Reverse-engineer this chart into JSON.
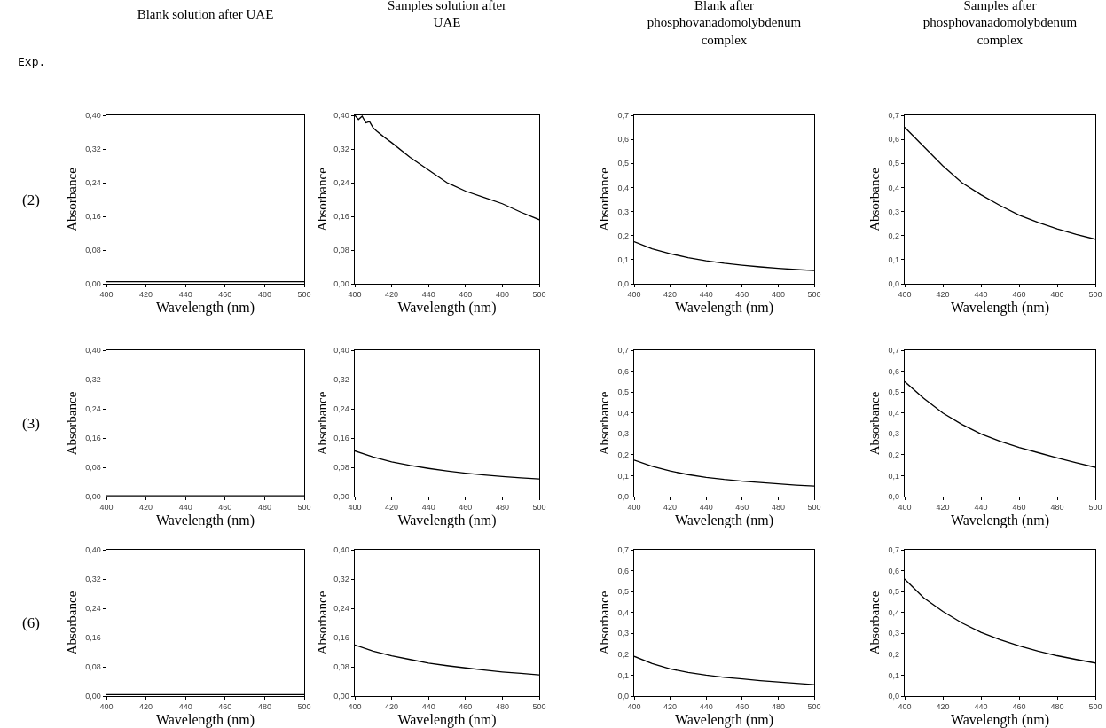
{
  "chart_data": [
    {
      "type": "line",
      "title": "Blank solution after UAE",
      "annotations": [
        "Exp.",
        "(2)"
      ],
      "xlabel": "Wavelength (nm)",
      "ylabel": "Absorbance",
      "color": "#000000",
      "marker": "none",
      "line_style": "solid",
      "x": [
        400,
        410,
        420,
        430,
        440,
        450,
        460,
        470,
        480,
        490,
        500
      ],
      "values": [
        0.005,
        0.005,
        0.005,
        0.005,
        0.005,
        0.005,
        0.005,
        0.005,
        0.005,
        0.005,
        0.005
      ],
      "xlim": [
        400,
        500
      ],
      "xticks": [
        400,
        420,
        440,
        460,
        480,
        500
      ],
      "ylim": [
        0,
        0.4
      ],
      "yticks": [
        {
          "value": 0,
          "label": "0,00"
        },
        {
          "value": 0.08,
          "label": "0,08"
        },
        {
          "value": 0.16,
          "label": "0,16"
        },
        {
          "value": 0.24,
          "label": "0,24"
        },
        {
          "value": 0.32,
          "label": "0,32"
        },
        {
          "value": 0.4,
          "label": "0,40"
        }
      ]
    },
    {
      "type": "line",
      "title": "Samples solution after UAE",
      "xlabel": "Wavelength (nm)",
      "ylabel": "Absorbance",
      "color": "#000000",
      "marker": "none",
      "line_style": "solid",
      "x": [
        400,
        402,
        404,
        406,
        408,
        410,
        412,
        414,
        416,
        420,
        430,
        440,
        450,
        460,
        470,
        480,
        490,
        500
      ],
      "values": [
        0.4,
        0.39,
        0.398,
        0.382,
        0.385,
        0.37,
        0.362,
        0.355,
        0.348,
        0.335,
        0.3,
        0.27,
        0.24,
        0.22,
        0.205,
        0.19,
        0.17,
        0.152
      ],
      "xlim": [
        400,
        500
      ],
      "xticks": [
        400,
        420,
        440,
        460,
        480,
        500
      ],
      "ylim": [
        0,
        0.4
      ],
      "yticks": [
        {
          "value": 0,
          "label": "0,00"
        },
        {
          "value": 0.08,
          "label": "0,08"
        },
        {
          "value": 0.16,
          "label": "0,16"
        },
        {
          "value": 0.24,
          "label": "0,24"
        },
        {
          "value": 0.32,
          "label": "0,32"
        },
        {
          "value": 0.4,
          "label": "0,40"
        }
      ]
    },
    {
      "type": "line",
      "title": "Blank after phosphovanadomolybdenum complex",
      "xlabel": "Wavelength (nm)",
      "ylabel": "Absorbance",
      "color": "#000000",
      "marker": "none",
      "line_style": "solid",
      "x": [
        400,
        410,
        420,
        430,
        440,
        450,
        460,
        470,
        480,
        490,
        500
      ],
      "values": [
        0.175,
        0.145,
        0.125,
        0.108,
        0.095,
        0.085,
        0.077,
        0.07,
        0.064,
        0.059,
        0.055
      ],
      "xlim": [
        400,
        500
      ],
      "xticks": [
        400,
        420,
        440,
        460,
        480,
        500
      ],
      "ylim": [
        0,
        0.7
      ],
      "yticks": [
        {
          "value": 0,
          "label": "0,0"
        },
        {
          "value": 0.1,
          "label": "0,1"
        },
        {
          "value": 0.2,
          "label": "0,2"
        },
        {
          "value": 0.3,
          "label": "0,3"
        },
        {
          "value": 0.4,
          "label": "0,4"
        },
        {
          "value": 0.5,
          "label": "0,5"
        },
        {
          "value": 0.6,
          "label": "0,6"
        },
        {
          "value": 0.7,
          "label": "0,7"
        }
      ]
    },
    {
      "type": "line",
      "title": "Samples after phosphovanadomolybdenum complex",
      "xlabel": "Wavelength (nm)",
      "ylabel": "Absorbance",
      "color": "#000000",
      "marker": "none",
      "line_style": "solid",
      "x": [
        400,
        410,
        420,
        430,
        440,
        450,
        460,
        470,
        480,
        490,
        500
      ],
      "values": [
        0.65,
        0.57,
        0.49,
        0.42,
        0.37,
        0.325,
        0.285,
        0.255,
        0.228,
        0.205,
        0.185
      ],
      "xlim": [
        400,
        500
      ],
      "xticks": [
        400,
        420,
        440,
        460,
        480,
        500
      ],
      "ylim": [
        0,
        0.7
      ],
      "yticks": [
        {
          "value": 0,
          "label": "0,0"
        },
        {
          "value": 0.1,
          "label": "0,1"
        },
        {
          "value": 0.2,
          "label": "0,2"
        },
        {
          "value": 0.3,
          "label": "0,3"
        },
        {
          "value": 0.4,
          "label": "0,4"
        },
        {
          "value": 0.5,
          "label": "0,5"
        },
        {
          "value": 0.6,
          "label": "0,6"
        },
        {
          "value": 0.7,
          "label": "0,7"
        }
      ]
    },
    {
      "type": "line",
      "annotations": [
        "(3)"
      ],
      "xlabel": "Wavelength (nm)",
      "ylabel": "Absorbance",
      "color": "#000000",
      "marker": "none",
      "line_style": "solid",
      "x": [
        400,
        410,
        420,
        430,
        440,
        450,
        460,
        470,
        480,
        490,
        500
      ],
      "values": [
        0.002,
        0.002,
        0.002,
        0.002,
        0.002,
        0.002,
        0.002,
        0.002,
        0.002,
        0.002,
        0.002
      ],
      "xlim": [
        400,
        500
      ],
      "xticks": [
        400,
        420,
        440,
        460,
        480,
        500
      ],
      "ylim": [
        0,
        0.4
      ],
      "yticks": [
        {
          "value": 0,
          "label": "0,00"
        },
        {
          "value": 0.08,
          "label": "0,08"
        },
        {
          "value": 0.16,
          "label": "0,16"
        },
        {
          "value": 0.24,
          "label": "0,24"
        },
        {
          "value": 0.32,
          "label": "0,32"
        },
        {
          "value": 0.4,
          "label": "0,40"
        }
      ]
    },
    {
      "type": "line",
      "xlabel": "Wavelength (nm)",
      "ylabel": "Absorbance",
      "color": "#000000",
      "marker": "none",
      "line_style": "solid",
      "x": [
        400,
        410,
        420,
        430,
        440,
        450,
        460,
        470,
        480,
        490,
        500
      ],
      "values": [
        0.125,
        0.108,
        0.095,
        0.085,
        0.077,
        0.07,
        0.064,
        0.059,
        0.055,
        0.051,
        0.048
      ],
      "xlim": [
        400,
        500
      ],
      "xticks": [
        400,
        420,
        440,
        460,
        480,
        500
      ],
      "ylim": [
        0,
        0.4
      ],
      "yticks": [
        {
          "value": 0,
          "label": "0,00"
        },
        {
          "value": 0.08,
          "label": "0,08"
        },
        {
          "value": 0.16,
          "label": "0,16"
        },
        {
          "value": 0.24,
          "label": "0,24"
        },
        {
          "value": 0.32,
          "label": "0,32"
        },
        {
          "value": 0.4,
          "label": "0,40"
        }
      ]
    },
    {
      "type": "line",
      "xlabel": "Wavelength (nm)",
      "ylabel": "Absorbance",
      "color": "#000000",
      "marker": "none",
      "line_style": "solid",
      "x": [
        400,
        410,
        420,
        430,
        440,
        450,
        460,
        470,
        480,
        490,
        500
      ],
      "values": [
        0.175,
        0.145,
        0.122,
        0.105,
        0.092,
        0.082,
        0.074,
        0.067,
        0.061,
        0.055,
        0.05
      ],
      "xlim": [
        400,
        500
      ],
      "xticks": [
        400,
        420,
        440,
        460,
        480,
        500
      ],
      "ylim": [
        0,
        0.7
      ],
      "yticks": [
        {
          "value": 0,
          "label": "0,0"
        },
        {
          "value": 0.1,
          "label": "0,1"
        },
        {
          "value": 0.2,
          "label": "0,2"
        },
        {
          "value": 0.3,
          "label": "0,3"
        },
        {
          "value": 0.4,
          "label": "0,4"
        },
        {
          "value": 0.5,
          "label": "0,5"
        },
        {
          "value": 0.6,
          "label": "0,6"
        },
        {
          "value": 0.7,
          "label": "0,7"
        }
      ]
    },
    {
      "type": "line",
      "xlabel": "Wavelength (nm)",
      "ylabel": "Absorbance",
      "color": "#000000",
      "marker": "none",
      "line_style": "solid",
      "x": [
        400,
        410,
        420,
        430,
        440,
        450,
        460,
        470,
        480,
        490,
        500
      ],
      "values": [
        0.55,
        0.47,
        0.4,
        0.345,
        0.3,
        0.265,
        0.235,
        0.21,
        0.185,
        0.162,
        0.14
      ],
      "xlim": [
        400,
        500
      ],
      "xticks": [
        400,
        420,
        440,
        460,
        480,
        500
      ],
      "ylim": [
        0,
        0.7
      ],
      "yticks": [
        {
          "value": 0,
          "label": "0,0"
        },
        {
          "value": 0.1,
          "label": "0,1"
        },
        {
          "value": 0.2,
          "label": "0,2"
        },
        {
          "value": 0.3,
          "label": "0,3"
        },
        {
          "value": 0.4,
          "label": "0,4"
        },
        {
          "value": 0.5,
          "label": "0,5"
        },
        {
          "value": 0.6,
          "label": "0,6"
        },
        {
          "value": 0.7,
          "label": "0,7"
        }
      ]
    },
    {
      "type": "line",
      "annotations": [
        "(6)"
      ],
      "xlabel": "Wavelength (nm)",
      "ylabel": "Absorbance",
      "color": "#000000",
      "marker": "none",
      "line_style": "solid",
      "x": [
        400,
        410,
        420,
        430,
        440,
        450,
        460,
        470,
        480,
        490,
        500
      ],
      "values": [
        0.004,
        0.004,
        0.004,
        0.004,
        0.004,
        0.004,
        0.004,
        0.004,
        0.004,
        0.004,
        0.004
      ],
      "xlim": [
        400,
        500
      ],
      "xticks": [
        400,
        420,
        440,
        460,
        480,
        500
      ],
      "ylim": [
        0,
        0.4
      ],
      "yticks": [
        {
          "value": 0,
          "label": "0,00"
        },
        {
          "value": 0.08,
          "label": "0,08"
        },
        {
          "value": 0.16,
          "label": "0,16"
        },
        {
          "value": 0.24,
          "label": "0,24"
        },
        {
          "value": 0.32,
          "label": "0,32"
        },
        {
          "value": 0.4,
          "label": "0,40"
        }
      ]
    },
    {
      "type": "line",
      "xlabel": "Wavelength (nm)",
      "ylabel": "Absorbance",
      "color": "#000000",
      "marker": "none",
      "line_style": "solid",
      "x": [
        400,
        410,
        420,
        430,
        440,
        450,
        460,
        470,
        480,
        490,
        500
      ],
      "values": [
        0.14,
        0.123,
        0.11,
        0.1,
        0.09,
        0.083,
        0.077,
        0.071,
        0.066,
        0.062,
        0.058
      ],
      "xlim": [
        400,
        500
      ],
      "xticks": [
        400,
        420,
        440,
        460,
        480,
        500
      ],
      "ylim": [
        0,
        0.4
      ],
      "yticks": [
        {
          "value": 0,
          "label": "0,00"
        },
        {
          "value": 0.08,
          "label": "0,08"
        },
        {
          "value": 0.16,
          "label": "0,16"
        },
        {
          "value": 0.24,
          "label": "0,24"
        },
        {
          "value": 0.32,
          "label": "0,32"
        },
        {
          "value": 0.4,
          "label": "0,40"
        }
      ]
    },
    {
      "type": "line",
      "xlabel": "Wavelength (nm)",
      "ylabel": "Absorbance",
      "color": "#000000",
      "marker": "none",
      "line_style": "solid",
      "x": [
        400,
        410,
        420,
        430,
        440,
        450,
        460,
        470,
        480,
        490,
        500
      ],
      "values": [
        0.19,
        0.155,
        0.13,
        0.113,
        0.1,
        0.09,
        0.082,
        0.074,
        0.067,
        0.061,
        0.055
      ],
      "xlim": [
        400,
        500
      ],
      "xticks": [
        400,
        420,
        440,
        460,
        480,
        500
      ],
      "ylim": [
        0,
        0.7
      ],
      "yticks": [
        {
          "value": 0,
          "label": "0,0"
        },
        {
          "value": 0.1,
          "label": "0,1"
        },
        {
          "value": 0.2,
          "label": "0,2"
        },
        {
          "value": 0.3,
          "label": "0,3"
        },
        {
          "value": 0.4,
          "label": "0,4"
        },
        {
          "value": 0.5,
          "label": "0,5"
        },
        {
          "value": 0.6,
          "label": "0,6"
        },
        {
          "value": 0.7,
          "label": "0,7"
        }
      ]
    },
    {
      "type": "line",
      "xlabel": "Wavelength (nm)",
      "ylabel": "Absorbance",
      "color": "#000000",
      "marker": "none",
      "line_style": "solid",
      "x": [
        400,
        410,
        420,
        430,
        440,
        450,
        460,
        470,
        480,
        490,
        500
      ],
      "values": [
        0.56,
        0.47,
        0.405,
        0.35,
        0.305,
        0.27,
        0.24,
        0.215,
        0.193,
        0.175,
        0.158
      ],
      "xlim": [
        400,
        500
      ],
      "xticks": [
        400,
        420,
        440,
        460,
        480,
        500
      ],
      "ylim": [
        0,
        0.7
      ],
      "yticks": [
        {
          "value": 0,
          "label": "0,0"
        },
        {
          "value": 0.1,
          "label": "0,1"
        },
        {
          "value": 0.2,
          "label": "0,2"
        },
        {
          "value": 0.3,
          "label": "0,3"
        },
        {
          "value": 0.4,
          "label": "0,4"
        },
        {
          "value": 0.5,
          "label": "0,5"
        },
        {
          "value": 0.6,
          "label": "0,6"
        },
        {
          "value": 0.7,
          "label": "0,7"
        }
      ]
    }
  ]
}
